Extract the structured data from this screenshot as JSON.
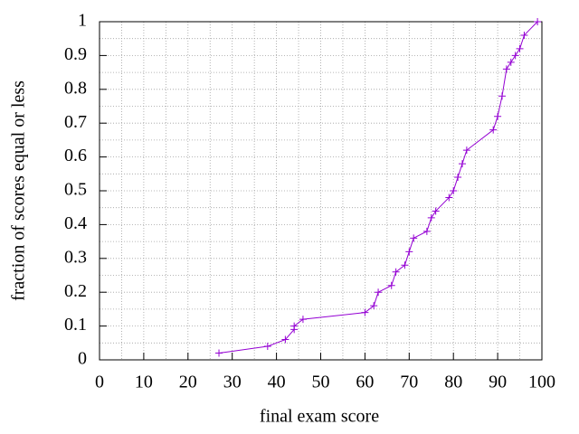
{
  "chart_data": {
    "type": "line",
    "xlabel": "final exam score",
    "ylabel": "fraction of scores equal or less",
    "series": [
      {
        "color": "#9400d3",
        "x": [
          27,
          38,
          42,
          44,
          44,
          46,
          60,
          62,
          63,
          66,
          67,
          69,
          70,
          71,
          74,
          75,
          76,
          79,
          80,
          81,
          82,
          83,
          89,
          90,
          91,
          92,
          93,
          94,
          95,
          96,
          99
        ],
        "values": [
          0.02,
          0.04,
          0.06,
          0.09,
          0.1,
          0.12,
          0.14,
          0.16,
          0.2,
          0.22,
          0.26,
          0.28,
          0.32,
          0.36,
          0.38,
          0.42,
          0.44,
          0.48,
          0.5,
          0.54,
          0.58,
          0.62,
          0.68,
          0.72,
          0.78,
          0.86,
          0.88,
          0.9,
          0.92,
          0.96,
          1
        ]
      }
    ],
    "xlim": [
      0,
      100
    ],
    "xticks": [
      0,
      10,
      20,
      30,
      40,
      50,
      60,
      70,
      80,
      90,
      100
    ],
    "ylim": [
      0,
      1
    ],
    "yticks": [
      0,
      0.1,
      0.2,
      0.3,
      0.4,
      0.5,
      0.6,
      0.7,
      0.8,
      0.9,
      1
    ],
    "grid": true,
    "minor_grid": 2
  }
}
